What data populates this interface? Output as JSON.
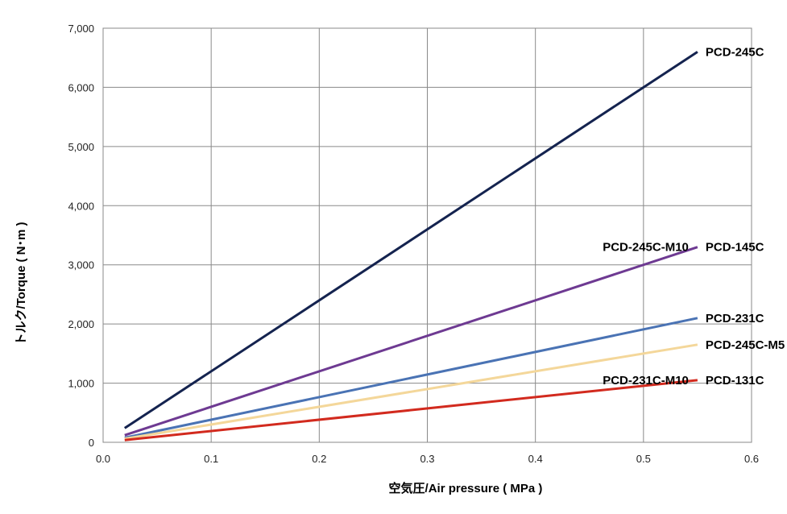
{
  "chart_data": {
    "type": "line",
    "xlabel": "空気圧/Air pressure ( MPa )",
    "ylabel": "トルク/Torque ( N･m )",
    "xlim": [
      0.0,
      0.6
    ],
    "ylim": [
      0,
      7000
    ],
    "x_ticks": [
      {
        "value": 0.0,
        "label": "0.0"
      },
      {
        "value": 0.1,
        "label": "0.1"
      },
      {
        "value": 0.2,
        "label": "0.2"
      },
      {
        "value": 0.3,
        "label": "0.3"
      },
      {
        "value": 0.4,
        "label": "0.4"
      },
      {
        "value": 0.5,
        "label": "0.5"
      },
      {
        "value": 0.6,
        "label": "0.6"
      }
    ],
    "y_ticks": [
      {
        "value": 0,
        "label": "0"
      },
      {
        "value": 1000,
        "label": "1,000"
      },
      {
        "value": 2000,
        "label": "2,000"
      },
      {
        "value": 3000,
        "label": "3,000"
      },
      {
        "value": 4000,
        "label": "4,000"
      },
      {
        "value": 5000,
        "label": "5,000"
      },
      {
        "value": 6000,
        "label": "6,000"
      },
      {
        "value": 7000,
        "label": "7,000"
      }
    ],
    "grid": true,
    "legend": "none",
    "series": [
      {
        "key": "pcd-245c",
        "color": "#14234f",
        "x": [
          0.02,
          0.55
        ],
        "y": [
          240,
          6600
        ]
      },
      {
        "key": "pcd-145c",
        "color": "#6e3a92",
        "x": [
          0.02,
          0.55
        ],
        "y": [
          120,
          3300
        ]
      },
      {
        "key": "pcd-231c",
        "color": "#4a73b4",
        "x": [
          0.02,
          0.55
        ],
        "y": [
          76,
          2100
        ]
      },
      {
        "key": "pcd-245c-m5",
        "color": "#f4d79a",
        "x": [
          0.02,
          0.55
        ],
        "y": [
          60,
          1650
        ]
      },
      {
        "key": "pcd-131c",
        "color": "#d22a1e",
        "x": [
          0.02,
          0.55
        ],
        "y": [
          38,
          1050
        ]
      }
    ],
    "end_labels": [
      {
        "key": "pcd-245c",
        "text": "PCD-245C",
        "anchor_y": 6600
      },
      {
        "key": "pcd-145c",
        "text": "PCD-145C",
        "anchor_y": 3300
      },
      {
        "key": "pcd-245c-m10",
        "text": "PCD-245C-M10",
        "anchor_y": 3300,
        "side": "left"
      },
      {
        "key": "pcd-231c",
        "text": "PCD-231C",
        "anchor_y": 2100
      },
      {
        "key": "pcd-245c-m5",
        "text": "PCD-245C-M5",
        "anchor_y": 1650
      },
      {
        "key": "pcd-131c",
        "text": "PCD-131C",
        "anchor_y": 1050
      },
      {
        "key": "pcd-231c-m10",
        "text": "PCD-231C-M10",
        "anchor_y": 1050,
        "side": "left"
      }
    ]
  }
}
